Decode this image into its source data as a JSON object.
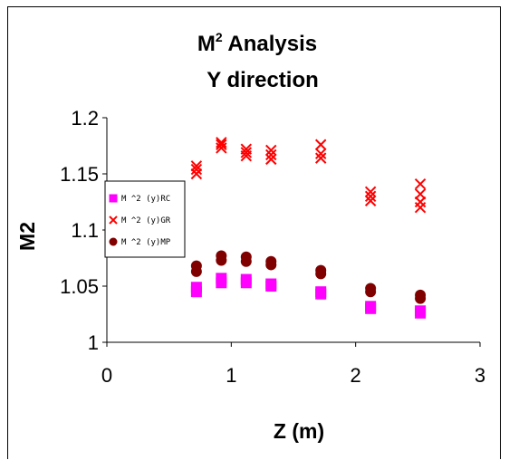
{
  "chart_data": {
    "type": "scatter",
    "title_main": "M",
    "title_sup": "2",
    "title_rest": " Analysis",
    "subtitle": "Y direction",
    "xlabel": "Z (m)",
    "ylabel": "M2",
    "xlim": [
      0,
      3
    ],
    "ylim": [
      1,
      1.2
    ],
    "xticks": [
      "0",
      "1",
      "2",
      "3"
    ],
    "yticks": [
      "1",
      "1.05",
      "1.1",
      "1.15",
      "1.2"
    ],
    "legend_position": "left",
    "series": [
      {
        "name": "M ^2 (y)RC",
        "marker": "square",
        "color": "#FF00FF",
        "points": [
          [
            0.72,
            1.045
          ],
          [
            0.72,
            1.049
          ],
          [
            0.92,
            1.053
          ],
          [
            0.92,
            1.057
          ],
          [
            1.12,
            1.053
          ],
          [
            1.12,
            1.056
          ],
          [
            1.32,
            1.05
          ],
          [
            1.32,
            1.052
          ],
          [
            1.72,
            1.043
          ],
          [
            1.72,
            1.045
          ],
          [
            2.12,
            1.03
          ],
          [
            2.12,
            1.032
          ],
          [
            2.52,
            1.026
          ],
          [
            2.52,
            1.028
          ]
        ]
      },
      {
        "name": "M ^2 (y)GR",
        "marker": "x",
        "color": "#FF0000",
        "points": [
          [
            0.72,
            1.15
          ],
          [
            0.72,
            1.154
          ],
          [
            0.72,
            1.157
          ],
          [
            0.92,
            1.173
          ],
          [
            0.92,
            1.176
          ],
          [
            0.92,
            1.178
          ],
          [
            1.12,
            1.166
          ],
          [
            1.12,
            1.169
          ],
          [
            1.12,
            1.172
          ],
          [
            1.32,
            1.163
          ],
          [
            1.32,
            1.167
          ],
          [
            1.32,
            1.171
          ],
          [
            1.72,
            1.164
          ],
          [
            1.72,
            1.168
          ],
          [
            1.72,
            1.176
          ],
          [
            2.12,
            1.126
          ],
          [
            2.12,
            1.13
          ],
          [
            2.12,
            1.134
          ],
          [
            2.52,
            1.12
          ],
          [
            2.52,
            1.125
          ],
          [
            2.52,
            1.132
          ],
          [
            2.52,
            1.141
          ]
        ]
      },
      {
        "name": "M ^2 (y)MP",
        "marker": "circle",
        "color": "#800000",
        "points": [
          [
            0.72,
            1.063
          ],
          [
            0.72,
            1.068
          ],
          [
            0.92,
            1.073
          ],
          [
            0.92,
            1.077
          ],
          [
            1.12,
            1.072
          ],
          [
            1.12,
            1.076
          ],
          [
            1.32,
            1.069
          ],
          [
            1.32,
            1.072
          ],
          [
            1.72,
            1.061
          ],
          [
            1.72,
            1.064
          ],
          [
            2.12,
            1.045
          ],
          [
            2.12,
            1.048
          ],
          [
            2.52,
            1.039
          ],
          [
            2.52,
            1.042
          ]
        ]
      }
    ]
  }
}
